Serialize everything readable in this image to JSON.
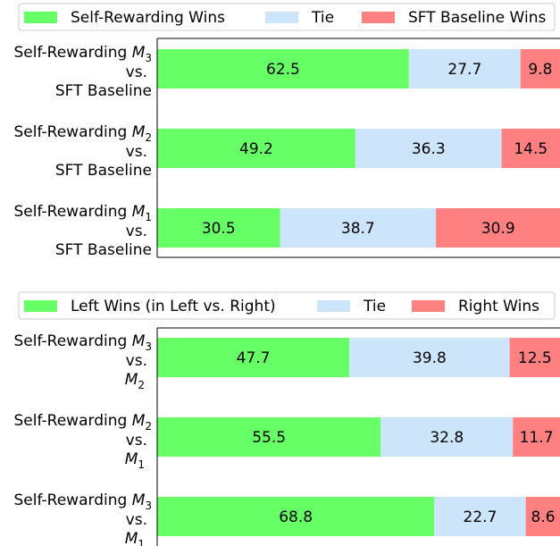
{
  "chart_data": [
    {
      "type": "bar",
      "orientation": "horizontal",
      "stacked": true,
      "legend_position": "top",
      "xlim": [
        0,
        100
      ],
      "categories": [
        {
          "line1": "Self-Rewarding ",
          "sub1": "3",
          "line2": "vs.",
          "line3": "SFT Baseline",
          "line3sub": ""
        },
        {
          "line1": "Self-Rewarding ",
          "sub1": "2",
          "line2": "vs.",
          "line3": "SFT Baseline",
          "line3sub": ""
        },
        {
          "line1": "Self-Rewarding ",
          "sub1": "1",
          "line2": "vs.",
          "line3": "SFT Baseline",
          "line3sub": ""
        }
      ],
      "series": [
        {
          "name": "Self-Rewarding Wins",
          "color": "#66ff66",
          "values": [
            62.5,
            49.2,
            30.5
          ]
        },
        {
          "name": "Tie",
          "color": "#cce5fa",
          "values": [
            27.7,
            36.3,
            38.7
          ]
        },
        {
          "name": "SFT Baseline Wins",
          "color": "#ff8080",
          "values": [
            9.8,
            14.5,
            30.9
          ]
        }
      ]
    },
    {
      "type": "bar",
      "orientation": "horizontal",
      "stacked": true,
      "legend_position": "top",
      "xlim": [
        0,
        100
      ],
      "categories": [
        {
          "line1": "Self-Rewarding ",
          "sub1": "3",
          "line2": "vs.",
          "line3": "",
          "line3sub": "2"
        },
        {
          "line1": "Self-Rewarding ",
          "sub1": "2",
          "line2": "vs.",
          "line3": "",
          "line3sub": "1"
        },
        {
          "line1": "Self-Rewarding ",
          "sub1": "3",
          "line2": "vs.",
          "line3": "",
          "line3sub": "1"
        }
      ],
      "series": [
        {
          "name": "Left Wins (in Left vs. Right)",
          "color": "#66ff66",
          "values": [
            47.7,
            55.5,
            68.8
          ]
        },
        {
          "name": "Tie",
          "color": "#cce5fa",
          "values": [
            39.8,
            32.8,
            22.7
          ]
        },
        {
          "name": "Right Wins",
          "color": "#ff8080",
          "values": [
            12.5,
            11.7,
            8.6
          ]
        }
      ]
    }
  ]
}
